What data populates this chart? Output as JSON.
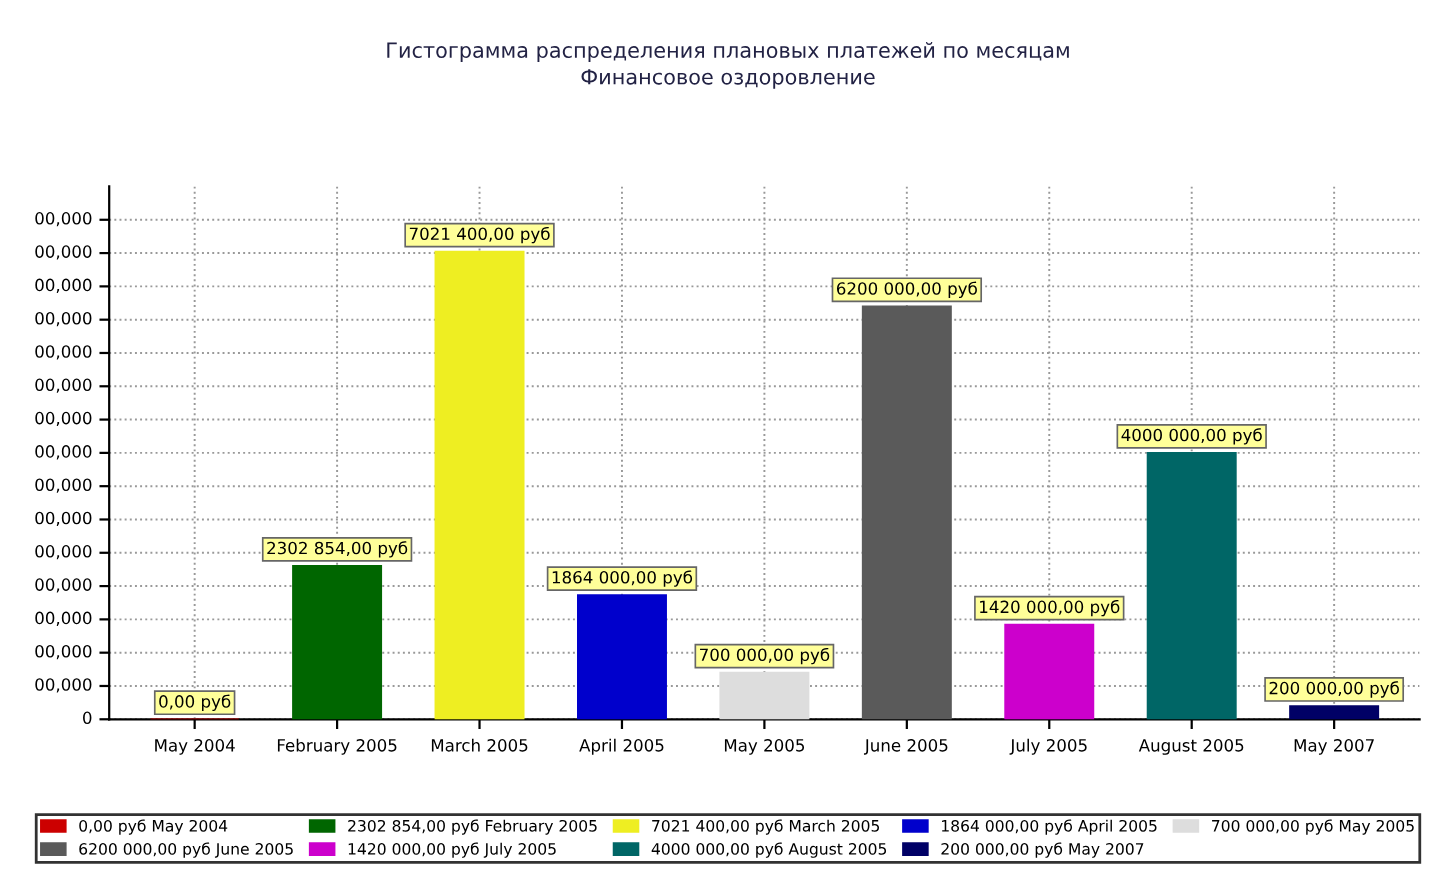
{
  "chart_data": {
    "type": "bar",
    "title": "Гистограмма распределения плановых платежей по месяцам",
    "subtitle": "Финансовое оздоровление",
    "categories": [
      "May 2004",
      "February 2005",
      "March 2005",
      "April 2005",
      "May 2005",
      "June 2005",
      "July 2005",
      "August 2005",
      "May 2007"
    ],
    "series": [
      {
        "name": "0,00 руб May 2004",
        "color": "#cc0000",
        "values": [
          0,
          null,
          null,
          null,
          null,
          null,
          null,
          null,
          null
        ],
        "value_labels": [
          "0,00 руб",
          null,
          null,
          null,
          null,
          null,
          null,
          null,
          null
        ]
      },
      {
        "name": "2302 854,00 руб February 2005",
        "color": "#006600",
        "values": [
          null,
          2302854,
          null,
          null,
          null,
          null,
          null,
          null,
          null
        ],
        "value_labels": [
          null,
          "2302 854,00 руб",
          null,
          null,
          null,
          null,
          null,
          null,
          null
        ]
      },
      {
        "name": "7021 400,00 руб March 2005",
        "color": "#eeee22",
        "values": [
          null,
          null,
          7021400,
          null,
          null,
          null,
          null,
          null,
          null
        ],
        "value_labels": [
          null,
          null,
          "7021 400,00 руб",
          null,
          null,
          null,
          null,
          null,
          null
        ]
      },
      {
        "name": "1864 000,00 руб April 2005",
        "color": "#0000cc",
        "values": [
          null,
          null,
          null,
          1864000,
          null,
          null,
          null,
          null,
          null
        ],
        "value_labels": [
          null,
          null,
          null,
          "1864 000,00 руб",
          null,
          null,
          null,
          null,
          null
        ]
      },
      {
        "name": "700 000,00 руб May 2005",
        "color": "#dddddd",
        "values": [
          null,
          null,
          null,
          null,
          700000,
          null,
          null,
          null,
          null
        ],
        "value_labels": [
          null,
          null,
          null,
          null,
          "700 000,00 руб",
          null,
          null,
          null,
          null
        ]
      },
      {
        "name": "6200 000,00 руб June 2005",
        "color": "#5a5a5a",
        "values": [
          null,
          null,
          null,
          null,
          null,
          6200000,
          null,
          null,
          null
        ],
        "value_labels": [
          null,
          null,
          null,
          null,
          null,
          "6200 000,00 руб",
          null,
          null,
          null
        ]
      },
      {
        "name": "1420 000,00 руб July 2005",
        "color": "#cc00cc",
        "values": [
          null,
          null,
          null,
          null,
          null,
          null,
          1420000,
          null,
          null
        ],
        "value_labels": [
          null,
          null,
          null,
          null,
          null,
          null,
          "1420 000,00 руб",
          null,
          null
        ]
      },
      {
        "name": "4000 000,00 руб August 2005",
        "color": "#006666",
        "values": [
          null,
          null,
          null,
          null,
          null,
          null,
          null,
          4000000,
          null
        ],
        "value_labels": [
          null,
          null,
          null,
          null,
          null,
          null,
          null,
          "4000 000,00 руб",
          null
        ]
      },
      {
        "name": "200 000,00 руб May 2007",
        "color": "#000066",
        "values": [
          null,
          null,
          null,
          null,
          null,
          null,
          null,
          null,
          200000
        ],
        "value_labels": [
          null,
          null,
          null,
          null,
          null,
          null,
          null,
          null,
          "200 000,00 руб"
        ]
      }
    ],
    "ylim": [
      0,
      8000000
    ],
    "yticks": [
      {
        "value": 0,
        "label": null
      },
      {
        "value": 500000,
        "label": null
      },
      {
        "value": 1000000,
        "label": null
      },
      {
        "value": 1500000,
        "label": null
      },
      {
        "value": 2000000,
        "label": null
      },
      {
        "value": 2500000,
        "label": null
      },
      {
        "value": 3000000,
        "label": null
      },
      {
        "value": 3500000,
        "label": null
      },
      {
        "value": 4000000,
        "label": null
      },
      {
        "value": 4500000,
        "label": null
      },
      {
        "value": 5000000,
        "label": null
      },
      {
        "value": 5500000,
        "label": null
      },
      {
        "value": 6000000,
        "label": null
      },
      {
        "value": 6500000,
        "label": null
      },
      {
        "value": 7000000,
        "label": null
      },
      {
        "value": 7500000,
        "label": null
      }
    ],
    "tick_labels": "x",
    "annotations": [
      "0",
      "00,000",
      "00,000",
      "00,000",
      "00,000",
      "00,000",
      "00,000",
      "00,000",
      "00,000",
      "00,000",
      "00,000",
      "00,000",
      "00,000",
      "00,000",
      "00,000",
      "00,000"
    ],
    "grid": true,
    "legend": "bottom"
  }
}
